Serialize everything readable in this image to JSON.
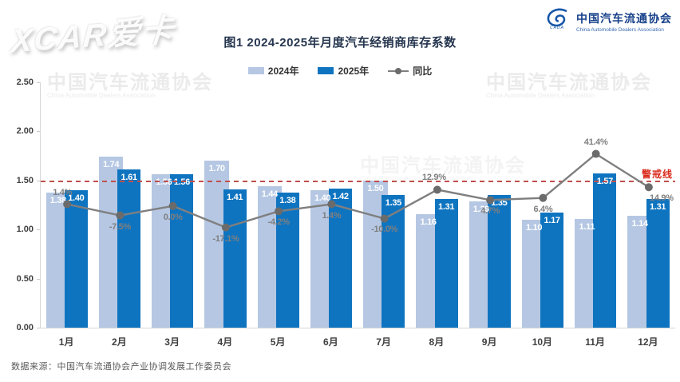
{
  "watermarks": {
    "xcar": "XCAR爱卡",
    "plot_cn": "中国汽车流通协会",
    "plot_en": "China Automobile Dealers Association"
  },
  "logo": {
    "cn": "中国汽车流通协会",
    "en": "China Automobile Dealers Association",
    "abbr": "CADA"
  },
  "legend": {
    "items": [
      {
        "label": "2024年",
        "color": "#b5c7e3"
      },
      {
        "label": "2025年",
        "color": "#0f74c0"
      },
      {
        "label": "同比",
        "color": "#7f7f7f"
      }
    ]
  },
  "chart_data": {
    "type": "bar",
    "title": "图1  2024-2025年月度汽车经销商库存系数",
    "categories": [
      "1月",
      "2月",
      "3月",
      "4月",
      "5月",
      "6月",
      "7月",
      "8月",
      "9月",
      "10月",
      "11月",
      "12月"
    ],
    "series": [
      {
        "name": "2024年",
        "type": "bar",
        "color": "#b5c7e3",
        "values": [
          1.38,
          1.74,
          1.56,
          1.7,
          1.44,
          1.4,
          1.5,
          1.16,
          1.29,
          1.1,
          1.11,
          1.14
        ]
      },
      {
        "name": "2025年",
        "type": "bar",
        "color": "#0f74c0",
        "values": [
          1.4,
          1.61,
          1.56,
          1.41,
          1.38,
          1.42,
          1.35,
          1.31,
          1.35,
          1.17,
          1.57,
          1.31
        ]
      },
      {
        "name": "同比",
        "type": "line",
        "color": "#7f7f7f",
        "dot_color": "#6b6b6b",
        "values_pct": [
          1.4,
          -7.5,
          0.0,
          -17.1,
          -4.2,
          1.4,
          -10.0,
          12.9,
          4.7,
          6.4,
          41.4,
          14.9
        ],
        "labels": [
          "1.4%",
          "-7.5%",
          "0.0%",
          "-17.1%",
          "-4.2%",
          "1.4%",
          "-10.0%",
          "12.9%",
          "4.7%",
          "6.4%",
          "41.4%",
          "14.9%"
        ],
        "label_pos": [
          "above",
          "below",
          "below",
          "below",
          "below",
          "below",
          "below",
          "above",
          "below",
          "below",
          "above",
          "below"
        ],
        "label_dx": [
          -6,
          0,
          0,
          0,
          0,
          0,
          0,
          -4,
          0,
          0,
          0,
          16
        ]
      }
    ],
    "ylim": [
      0,
      2.5
    ],
    "yticks": [
      "0.00",
      "0.50",
      "1.00",
      "1.50",
      "2.00",
      "2.50"
    ],
    "warning_line": {
      "value": 1.5,
      "label": "警戒线",
      "line_color": "#c0504d",
      "text_color": "#d92b1c"
    },
    "grid": false,
    "legend_position": "top",
    "xlabel": "",
    "ylabel": ""
  },
  "footer": {
    "source": "数据来源：中国汽车流通协会产业协调发展工作委员会"
  }
}
